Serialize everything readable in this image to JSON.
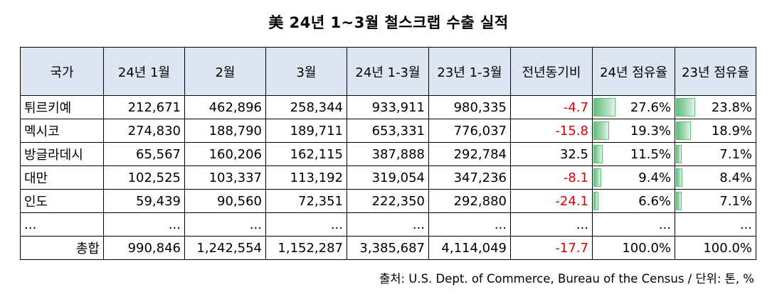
{
  "title": "美 24년 1~3월 철스크랩 수출 실적",
  "table": {
    "headers": [
      "국가",
      "24년 1월",
      "2월",
      "3월",
      "24년 1-3월",
      "23년 1-3월",
      "전년동기비",
      "24년 점유율",
      "23년 점유율"
    ],
    "rows": [
      {
        "country": "튀르키예",
        "jan": "212,671",
        "feb": "462,896",
        "mar": "258,344",
        "q1_24": "933,911",
        "q1_23": "980,335",
        "yoy": "-4.7",
        "share24": "27.6%",
        "share23": "23.8%",
        "share24_value": 27.6,
        "share23_value": 23.8
      },
      {
        "country": "멕시코",
        "jan": "274,830",
        "feb": "188,790",
        "mar": "189,711",
        "q1_24": "653,331",
        "q1_23": "776,037",
        "yoy": "-15.8",
        "share24": "19.3%",
        "share23": "18.9%",
        "share24_value": 19.3,
        "share23_value": 18.9
      },
      {
        "country": "방글라데시",
        "jan": "65,567",
        "feb": "160,206",
        "mar": "162,115",
        "q1_24": "387,888",
        "q1_23": "292,784",
        "yoy": "32.5",
        "share24": "11.5%",
        "share23": "7.1%",
        "share24_value": 11.5,
        "share23_value": 7.1
      },
      {
        "country": "대만",
        "jan": "102,525",
        "feb": "103,337",
        "mar": "113,192",
        "q1_24": "319,054",
        "q1_23": "347,236",
        "yoy": "-8.1",
        "share24": "9.4%",
        "share23": "8.4%",
        "share24_value": 9.4,
        "share23_value": 8.4
      },
      {
        "country": "인도",
        "jan": "59,439",
        "feb": "90,560",
        "mar": "72,351",
        "q1_24": "222,350",
        "q1_23": "292,880",
        "yoy": "-24.1",
        "share24": "6.6%",
        "share23": "7.1%",
        "share24_value": 6.6,
        "share23_value": 7.1
      },
      {
        "country": "...",
        "jan": "...",
        "feb": "...",
        "mar": "...",
        "q1_24": "...",
        "q1_23": "...",
        "yoy": "...",
        "share24": "...",
        "share23": "..."
      }
    ],
    "total": {
      "country": "총합",
      "jan": "990,846",
      "feb": "1,242,554",
      "mar": "1,152,287",
      "q1_24": "3,385,687",
      "q1_23": "4,114,049",
      "yoy": "-17.7",
      "share24": "100.0%",
      "share23": "100.0%"
    }
  },
  "colors": {
    "header_bg": "#dce6f1",
    "negative": "#e00000",
    "databar": "#63be7b"
  },
  "source": "출처: U.S. Dept. of Commerce, Bureau of the Census / 단위: 톤, %"
}
